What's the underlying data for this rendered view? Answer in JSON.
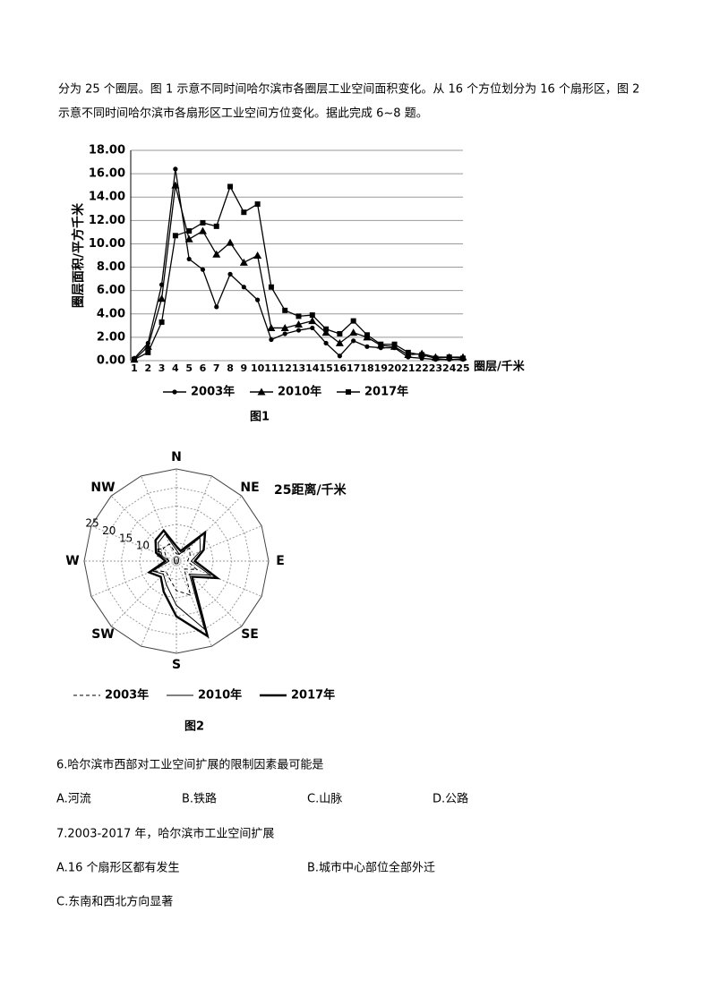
{
  "intro": [
    "分为 25 个圈层。图 1 示意不同时间哈尔滨市各圈层工业空间面积变化。从 16 个方位划分为 16 个扇形区，图 2",
    "示意不同时间哈尔滨市各扇形区工业空间方位变化。据此完成 6~8 题。"
  ],
  "chart_data": [
    {
      "type": "line",
      "caption": "图1",
      "y_label": "圈层面积/平方千米",
      "x_label": "圈层/千米",
      "categories": [
        "1",
        "2",
        "3",
        "4",
        "5",
        "6",
        "7",
        "8",
        "9",
        "10",
        "11",
        "12",
        "13",
        "14",
        "15",
        "16",
        "17",
        "18",
        "19",
        "20",
        "21",
        "22",
        "23",
        "24",
        "25"
      ],
      "series": [
        {
          "name": "2003年",
          "color": "#000000",
          "marker": "circle",
          "values": [
            0.2,
            1.5,
            6.5,
            16.4,
            8.7,
            7.8,
            4.6,
            7.4,
            6.3,
            5.2,
            1.8,
            2.3,
            2.6,
            2.8,
            1.5,
            0.4,
            1.7,
            1.2,
            1.1,
            1.1,
            0.3,
            0.2,
            0.1,
            0.1,
            0.1
          ]
        },
        {
          "name": "2010年",
          "color": "#000000",
          "marker": "triangle",
          "values": [
            0.1,
            1.2,
            5.3,
            15.0,
            10.4,
            11.1,
            9.1,
            10.1,
            8.4,
            9.0,
            2.8,
            2.8,
            3.1,
            3.4,
            2.4,
            1.5,
            2.4,
            2.0,
            1.3,
            1.2,
            0.5,
            0.6,
            0.3,
            0.3,
            0.3
          ]
        },
        {
          "name": "2017年",
          "color": "#000000",
          "marker": "square",
          "values": [
            0.1,
            0.7,
            3.3,
            10.7,
            11.1,
            11.8,
            11.5,
            14.9,
            12.7,
            13.4,
            6.3,
            4.3,
            3.8,
            3.9,
            2.7,
            2.3,
            3.4,
            2.2,
            1.4,
            1.4,
            0.7,
            0.5,
            0.2,
            0.3,
            0.2
          ]
        }
      ],
      "ylim": [
        0,
        18
      ],
      "yticks": [
        {
          "value": 0,
          "label": "0.00"
        },
        {
          "value": 2,
          "label": "2.00"
        },
        {
          "value": 4,
          "label": "4.00"
        },
        {
          "value": 6,
          "label": "6.00"
        },
        {
          "value": 8,
          "label": "8.00"
        },
        {
          "value": 10,
          "label": "10.00"
        },
        {
          "value": 12,
          "label": "12.00"
        },
        {
          "value": 14,
          "label": "14.00"
        },
        {
          "value": 16,
          "label": "16.00"
        },
        {
          "value": 18,
          "label": "18.00"
        }
      ],
      "grid": true
    },
    {
      "type": "radar",
      "caption": "图2",
      "axis_label": "25距离/千米",
      "categories": [
        "N",
        null,
        "NE",
        null,
        "E",
        null,
        "SE",
        null,
        "S",
        null,
        "SW",
        null,
        "W",
        null,
        "NW",
        null
      ],
      "rlim": [
        0,
        25
      ],
      "rticks": [
        0,
        5,
        10,
        15,
        20,
        25
      ],
      "series": [
        {
          "name": "2003年",
          "color": "#000000",
          "dash": true,
          "width": 1,
          "values": [
            2,
            2,
            5,
            4,
            3,
            6,
            3,
            10,
            8,
            5,
            4,
            7,
            2,
            3,
            5,
            5
          ]
        },
        {
          "name": "2010年",
          "color": "#000000",
          "dash": false,
          "width": 1,
          "values": [
            3,
            2,
            9,
            7,
            4,
            10,
            5,
            20,
            12,
            7,
            5,
            7,
            2,
            5,
            7,
            8
          ]
        },
        {
          "name": "2017年",
          "color": "#000000",
          "dash": false,
          "width": 2.4,
          "values": [
            4,
            3,
            11,
            8,
            5,
            12,
            6,
            22,
            15,
            9,
            6,
            8,
            3,
            6,
            8,
            9
          ]
        }
      ]
    }
  ],
  "questions": [
    {
      "stem": "6.哈尔滨市西部对工业空间扩展的限制因素最可能是",
      "options": [
        "A.河流",
        "B.铁路",
        "C.山脉",
        "D.公路"
      ]
    },
    {
      "stem": "7.2003-2017 年，哈尔滨市工业空间扩展",
      "options": [
        "A.16 个扇形区都有发生",
        "B.城市中心部位全部外迁",
        "C.东南和西北方向显著"
      ]
    }
  ]
}
